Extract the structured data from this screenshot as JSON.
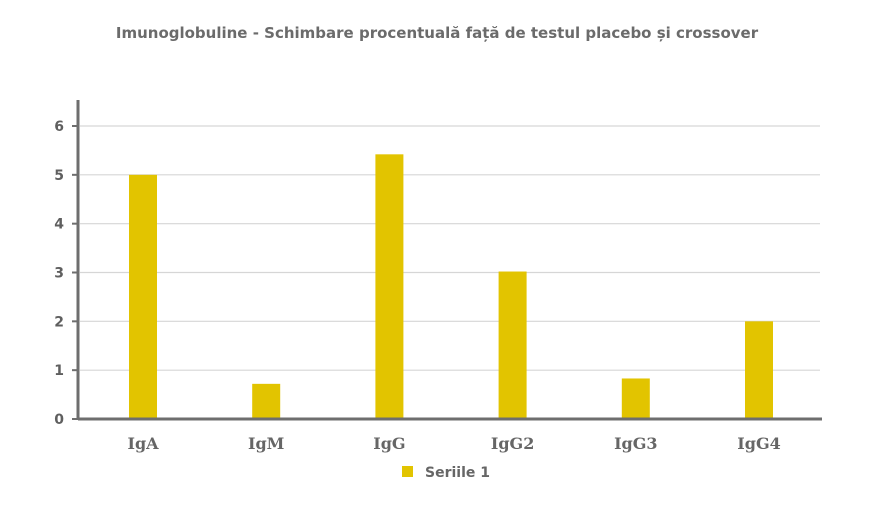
{
  "chart_data": {
    "type": "bar",
    "title": "Imunoglobuline - Schimbare procentuală față de testul placebo și crossover",
    "categories": [
      "IgA",
      "IgM",
      "IgG",
      "IgG2",
      "IgG3",
      "IgG4"
    ],
    "series": [
      {
        "name": "Seriile 1",
        "values": [
          5.0,
          0.72,
          5.42,
          3.02,
          0.83,
          2.0
        ]
      }
    ],
    "yticks": [
      "0",
      "1",
      "2",
      "3",
      "4",
      "5",
      "6"
    ],
    "ylim": [
      0,
      6
    ],
    "grid": true,
    "legend_position": "bottom",
    "colors": {
      "bar": "#e2c400",
      "grid": "#d6d6d6",
      "axis": "#6e6e6e",
      "title": "#6b6b6b"
    }
  }
}
